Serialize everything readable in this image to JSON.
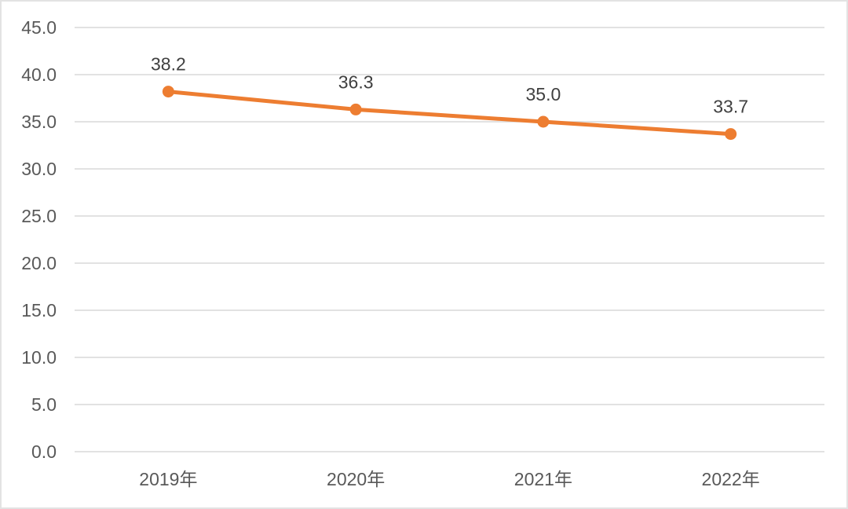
{
  "chart_data": {
    "type": "line",
    "categories": [
      "2019年",
      "2020年",
      "2021年",
      "2022年"
    ],
    "series": [
      {
        "name": "value",
        "values": [
          38.2,
          36.3,
          35.0,
          33.7
        ]
      }
    ],
    "data_labels": [
      "38.2",
      "36.3",
      "35.0",
      "33.7"
    ],
    "y_ticks": [
      "45.0",
      "40.0",
      "35.0",
      "30.0",
      "25.0",
      "20.0",
      "15.0",
      "10.0",
      "5.0",
      "0.0"
    ],
    "ylim": [
      0,
      45
    ],
    "y_step": 5,
    "title": "",
    "xlabel": "",
    "ylabel": "",
    "grid": true,
    "legend_position": "none",
    "colors": {
      "line": "#ED7D31",
      "marker": "#ED7D31",
      "gridline": "#D9D9D9",
      "axis_line": "#D9D9D9",
      "tick_text": "#595959",
      "data_label_text": "#404040",
      "background": "#FFFFFF",
      "frame_border": "#E3E3E3"
    }
  }
}
